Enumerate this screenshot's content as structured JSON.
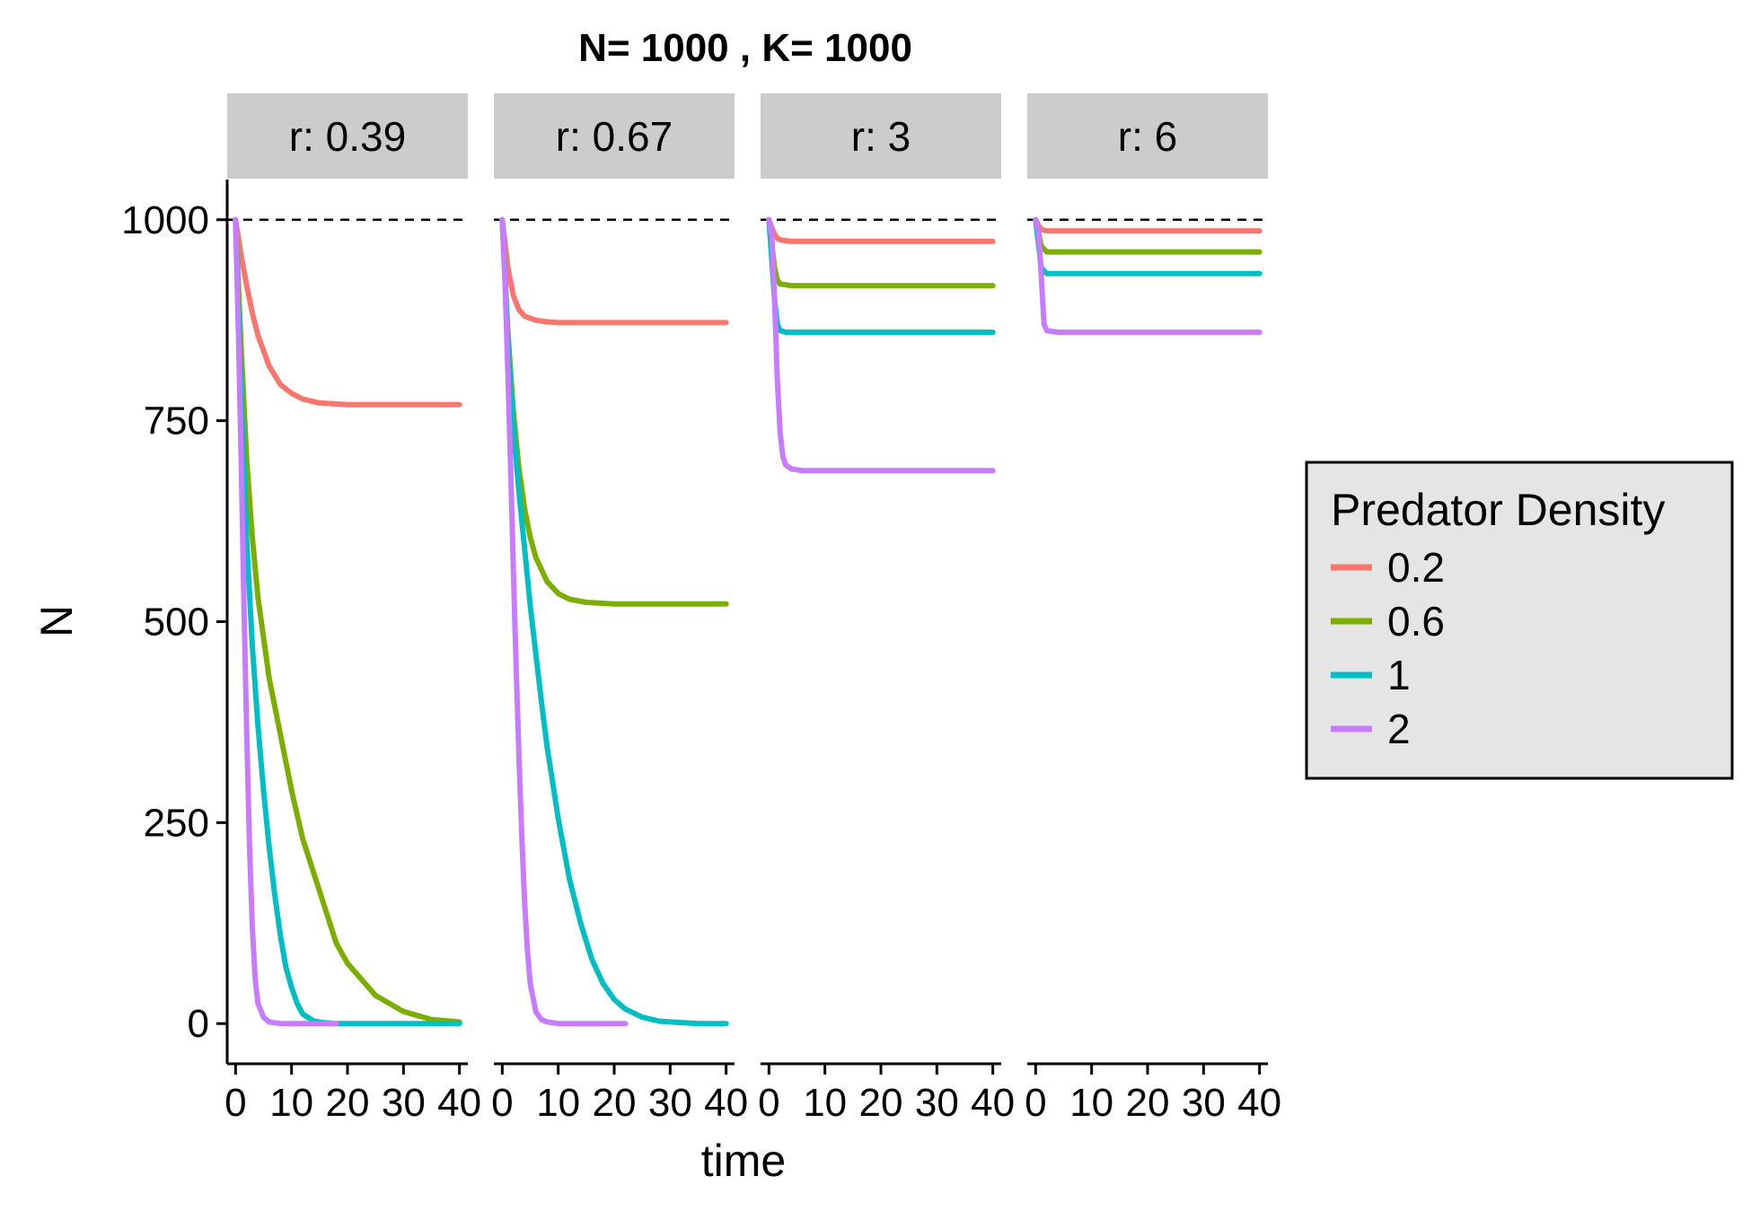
{
  "chart_data": {
    "type": "line",
    "title": "N= 1000 , K= 1000",
    "xlabel": "time",
    "ylabel": "N",
    "xlim": [
      -1.5,
      41.5
    ],
    "ylim": [
      -50,
      1050
    ],
    "xticks": [
      0,
      10,
      20,
      30,
      40
    ],
    "xtick_labels": [
      "0",
      "10",
      "20",
      "30",
      "40"
    ],
    "yticks": [
      0,
      250,
      500,
      750,
      1000
    ],
    "ytick_labels": [
      "0",
      "250",
      "500",
      "750",
      "1000"
    ],
    "reference_line": {
      "y": 1000,
      "style": "dashed"
    },
    "grid": false,
    "legend": {
      "title": "Predator Density",
      "position": "right",
      "entries": [
        {
          "label": "0.2",
          "color": "#F8766D"
        },
        {
          "label": "0.6",
          "color": "#7CAE00"
        },
        {
          "label": "1",
          "color": "#00BFC4"
        },
        {
          "label": "2",
          "color": "#C77CFF"
        }
      ]
    },
    "panels": [
      {
        "label": "r: 0.39",
        "series": [
          {
            "legend": "0.2",
            "x": [
              0,
              1,
              2,
              3,
              4,
              6,
              8,
              10,
              12,
              15,
              20,
              25,
              30,
              35,
              40
            ],
            "y": [
              1000,
              955,
              918,
              884,
              856,
              818,
              795,
              784,
              777,
              772,
              770,
              770,
              770,
              770,
              770
            ]
          },
          {
            "legend": "0.6",
            "x": [
              0,
              1,
              2,
              3,
              4,
              6,
              8,
              10,
              12,
              15,
              18,
              20,
              25,
              30,
              35,
              40
            ],
            "y": [
              1000,
              840,
              700,
              605,
              530,
              430,
              360,
              290,
              230,
              165,
              100,
              75,
              35,
              15,
              5,
              2
            ]
          },
          {
            "legend": "1",
            "x": [
              0,
              1,
              2,
              3,
              4,
              5,
              6,
              7,
              8,
              9,
              10,
              11,
              12,
              14,
              16,
              18,
              20,
              25,
              30,
              35,
              40
            ],
            "y": [
              1000,
              780,
              600,
              470,
              370,
              290,
              220,
              160,
              110,
              70,
              45,
              25,
              12,
              3,
              1,
              0,
              0,
              0,
              0,
              0,
              0
            ]
          },
          {
            "legend": "2",
            "x": [
              0,
              0.5,
              1,
              1.5,
              2,
              2.5,
              3,
              3.5,
              4,
              5,
              6,
              8,
              10,
              12,
              14,
              16,
              18
            ],
            "y": [
              1000,
              860,
              700,
              520,
              360,
              220,
              120,
              55,
              25,
              8,
              2,
              0,
              0,
              0,
              0,
              0,
              0
            ]
          }
        ]
      },
      {
        "label": "r: 0.67",
        "series": [
          {
            "legend": "0.2",
            "x": [
              0,
              1,
              2,
              3,
              4,
              6,
              8,
              10,
              15,
              20,
              30,
              40
            ],
            "y": [
              1000,
              940,
              905,
              888,
              880,
              875,
              873,
              872,
              872,
              872,
              872,
              872
            ]
          },
          {
            "legend": "0.6",
            "x": [
              0,
              1,
              2,
              3,
              4,
              5,
              6,
              8,
              10,
              12,
              15,
              20,
              25,
              30,
              35,
              40
            ],
            "y": [
              1000,
              860,
              760,
              690,
              640,
              605,
              580,
              550,
              535,
              528,
              524,
              522,
              522,
              522,
              522,
              522
            ]
          },
          {
            "legend": "1",
            "x": [
              0,
              1,
              2,
              3,
              4,
              5,
              6,
              7,
              8,
              10,
              12,
              14,
              16,
              18,
              20,
              22,
              25,
              28,
              30,
              35,
              40
            ],
            "y": [
              1000,
              850,
              740,
              660,
              590,
              520,
              460,
              400,
              345,
              255,
              180,
              125,
              80,
              50,
              30,
              18,
              8,
              3,
              2,
              0,
              0
            ]
          },
          {
            "legend": "2",
            "x": [
              0,
              0.5,
              1,
              1.5,
              2,
              2.5,
              3,
              3.5,
              4,
              4.5,
              5,
              6,
              7,
              8,
              10,
              15,
              20,
              22
            ],
            "y": [
              1000,
              920,
              810,
              690,
              560,
              440,
              330,
              230,
              150,
              90,
              50,
              15,
              5,
              2,
              0,
              0,
              0,
              0
            ]
          }
        ]
      },
      {
        "label": "r: 3",
        "series": [
          {
            "legend": "0.2",
            "x": [
              0,
              0.5,
              1,
              1.5,
              2,
              3,
              4,
              10,
              20,
              30,
              40
            ],
            "y": [
              1000,
              990,
              982,
              977,
              975,
              974,
              973,
              973,
              973,
              973,
              973
            ]
          },
          {
            "legend": "0.6",
            "x": [
              0,
              0.5,
              1,
              1.5,
              2,
              3,
              4,
              10,
              20,
              30,
              40
            ],
            "y": [
              1000,
              970,
              940,
              925,
              920,
              919,
              918,
              918,
              918,
              918,
              918
            ]
          },
          {
            "legend": "1",
            "x": [
              0,
              0.5,
              1,
              1.5,
              2,
              3,
              4,
              10,
              20,
              30,
              40
            ],
            "y": [
              1000,
              950,
              900,
              870,
              862,
              860,
              860,
              860,
              860,
              860,
              860
            ]
          },
          {
            "legend": "2",
            "x": [
              0,
              0.5,
              1,
              1.5,
              2,
              2.5,
              3,
              4,
              6,
              10,
              20,
              30,
              40
            ],
            "y": [
              1000,
              980,
              900,
              800,
              735,
              705,
              695,
              690,
              688,
              688,
              688,
              688,
              688
            ]
          }
        ]
      },
      {
        "label": "r: 6",
        "series": [
          {
            "legend": "0.2",
            "x": [
              0,
              0.5,
              1,
              2,
              3,
              10,
              20,
              30,
              40
            ],
            "y": [
              1000,
              993,
              988,
              986,
              986,
              986,
              986,
              986,
              986
            ]
          },
          {
            "legend": "0.6",
            "x": [
              0,
              0.5,
              1,
              2,
              3,
              10,
              20,
              30,
              40
            ],
            "y": [
              1000,
              985,
              967,
              960,
              960,
              960,
              960,
              960,
              960
            ]
          },
          {
            "legend": "1",
            "x": [
              0,
              0.5,
              1,
              2,
              3,
              10,
              20,
              30,
              40
            ],
            "y": [
              1000,
              970,
              940,
              933,
              933,
              933,
              933,
              933,
              933
            ]
          },
          {
            "legend": "2",
            "x": [
              0,
              0.5,
              1,
              1.5,
              2,
              3,
              4,
              10,
              20,
              30,
              40
            ],
            "y": [
              1000,
              985,
              930,
              870,
              862,
              861,
              860,
              860,
              860,
              860,
              860
            ]
          }
        ]
      }
    ]
  }
}
